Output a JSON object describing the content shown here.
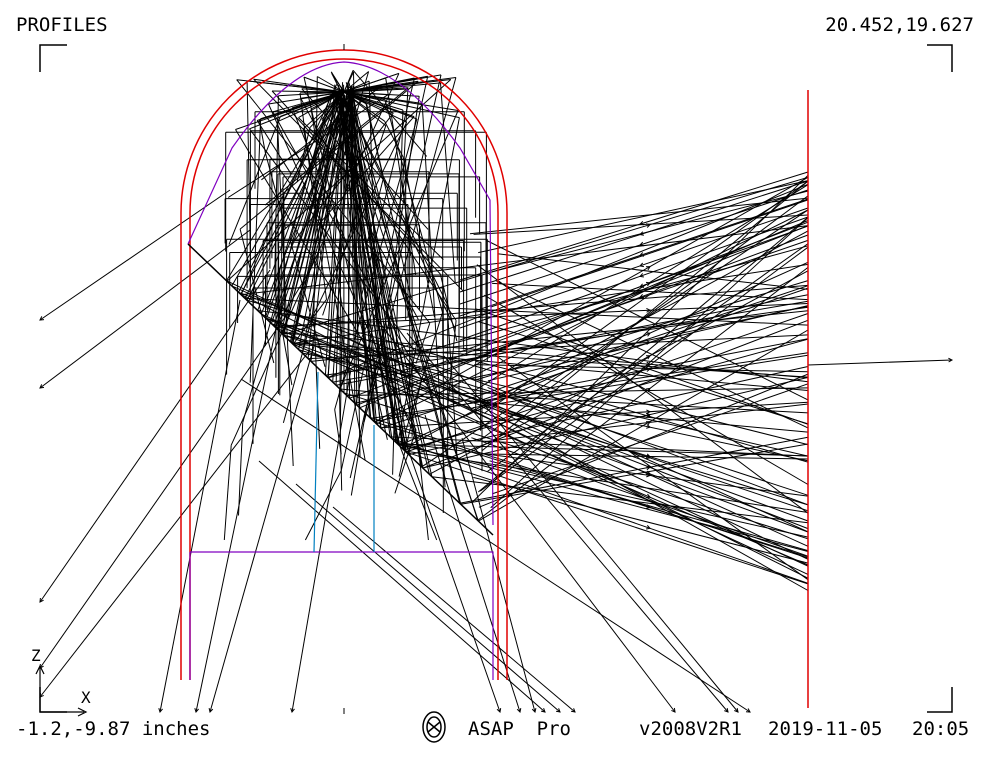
{
  "header": {
    "title": "PROFILES",
    "coords": "20.452,19.627"
  },
  "footer": {
    "coords_units": "-1.2,-9.87 inches",
    "software": "ASAP  Pro",
    "version": "v2008V2R1",
    "date": "2019-11-05",
    "time": "20:05"
  },
  "axes": {
    "z_label": "Z",
    "x_label": "X"
  },
  "colors": {
    "housing": "#e00000",
    "lens": "#8000c0",
    "mirror_support": "#0080c0",
    "rays": "#000000",
    "detector": "#e00000",
    "logo": "#000000"
  },
  "icons": {
    "logo": "asap-logo-icon"
  }
}
